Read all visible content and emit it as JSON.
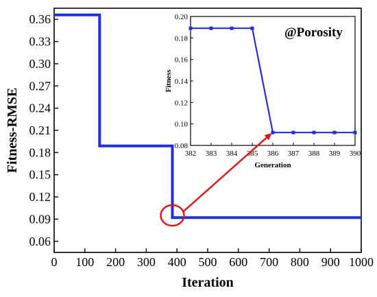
{
  "chart_data": [
    {
      "type": "line",
      "xlabel": "Iteration",
      "ylabel": "Fitness-RMSE",
      "xlim": [
        0,
        1000
      ],
      "ylim": [
        0.045,
        0.375
      ],
      "xticks": [
        0,
        100,
        200,
        300,
        400,
        500,
        600,
        700,
        800,
        900,
        1000
      ],
      "yticks": [
        0.06,
        0.09,
        0.12,
        0.15,
        0.18,
        0.21,
        0.24,
        0.27,
        0.3,
        0.33,
        0.36
      ],
      "ytick_labels": [
        "0.06",
        "0.09",
        "0.12",
        "0.15",
        "0.18",
        "0.21",
        "0.24",
        "0.27",
        "0.30",
        "0.33",
        "0.36"
      ],
      "series": [
        {
          "color": "#1f2ee0",
          "step": true,
          "x": [
            0,
            148,
            148,
            385,
            385,
            1000
          ],
          "y": [
            0.366,
            0.366,
            0.189,
            0.189,
            0.092,
            0.092
          ]
        }
      ],
      "annotations": [
        {
          "kind": "circle",
          "x": 385,
          "y": 0.095,
          "color": "#e01818"
        },
        {
          "kind": "arrow",
          "from": [
            420,
            0.1
          ],
          "to": [
            705,
            0.205
          ],
          "color": "#e01818"
        }
      ]
    },
    {
      "type": "line",
      "xlabel": "Generation",
      "ylabel": "Fitness",
      "annotation": "@Porosity",
      "xlim": [
        382,
        390
      ],
      "ylim": [
        0.08,
        0.2
      ],
      "xticks": [
        382,
        383,
        384,
        385,
        386,
        387,
        388,
        389,
        390
      ],
      "yticks": [
        0.08,
        0.1,
        0.12,
        0.14,
        0.16,
        0.18,
        0.2
      ],
      "ytick_labels": [
        "0.08",
        "0.10",
        "0.12",
        "0.14",
        "0.16",
        "0.18",
        "0.20"
      ],
      "series": [
        {
          "color": "#1f2ee0",
          "x": [
            382,
            383,
            384,
            385,
            386,
            387,
            388,
            389,
            390
          ],
          "y": [
            0.189,
            0.189,
            0.189,
            0.189,
            0.092,
            0.092,
            0.092,
            0.092,
            0.092
          ]
        }
      ]
    }
  ]
}
